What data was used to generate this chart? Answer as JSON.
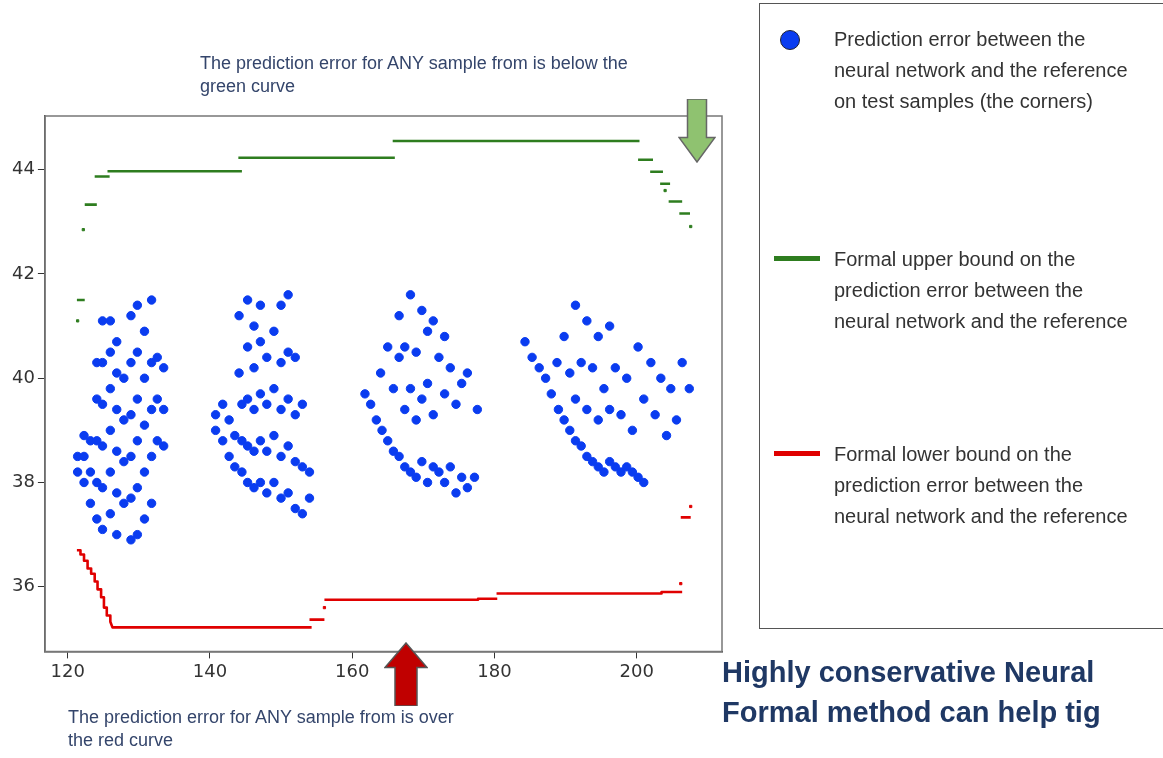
{
  "chart_data": {
    "type": "scatter",
    "annotations": [
      "The prediction error for ANY sample from is below the green curve",
      "The prediction error for ANY sample from  is over the red curve",
      "Highly conservative Neural",
      "Formal method can help tig"
    ],
    "xlim": [
      116.8,
      212.0
    ],
    "xticks": [
      120,
      140,
      160,
      180,
      200
    ],
    "ylim": [
      34.76,
      45.03
    ],
    "yticks": [
      36,
      38,
      40,
      42,
      44
    ],
    "grid": false,
    "legend": "right",
    "series": [
      {
        "name": "Prediction error between the neural network and the reference on test samples (the corners)",
        "type": "scatter",
        "marker": "circle",
        "color": "#0a3cf0",
        "x": [
          121.4,
          121.4,
          122.3,
          122.3,
          122.3,
          123.2,
          123.2,
          123.2,
          124.1,
          124.1,
          124.1,
          124.1,
          124.1,
          124.9,
          124.9,
          124.9,
          124.9,
          124.9,
          124.9,
          126.0,
          126.0,
          126.0,
          126.0,
          126.0,
          126.0,
          126.9,
          126.9,
          126.9,
          126.9,
          126.9,
          126.9,
          127.9,
          127.9,
          127.9,
          127.9,
          128.9,
          128.9,
          128.9,
          128.9,
          128.9,
          128.9,
          129.8,
          129.8,
          129.8,
          129.8,
          129.8,
          129.8,
          130.8,
          130.8,
          130.8,
          130.8,
          130.8,
          131.8,
          131.8,
          131.8,
          131.8,
          131.8,
          132.6,
          132.6,
          132.6,
          133.5,
          133.5,
          133.5,
          140.8,
          140.8,
          141.8,
          141.8,
          142.7,
          142.7,
          143.5,
          143.5,
          144.1,
          144.1,
          144.5,
          144.5,
          144.5,
          145.3,
          145.3,
          145.3,
          145.3,
          145.3,
          146.2,
          146.2,
          146.2,
          146.2,
          146.2,
          147.1,
          147.1,
          147.1,
          147.1,
          147.1,
          148.0,
          148.0,
          148.0,
          148.0,
          149.0,
          149.0,
          149.0,
          149.0,
          150.0,
          150.0,
          150.0,
          150.0,
          150.0,
          151.0,
          151.0,
          151.0,
          151.0,
          151.0,
          152.0,
          152.0,
          152.0,
          152.0,
          153.0,
          153.0,
          153.0,
          154.0,
          154.0,
          161.8,
          162.6,
          163.4,
          164.2,
          164.0,
          165.0,
          165.0,
          165.8,
          165.8,
          166.6,
          166.6,
          166.6,
          167.4,
          167.4,
          167.4,
          168.2,
          168.2,
          168.2,
          169.0,
          169.0,
          169.0,
          169.8,
          169.8,
          169.8,
          170.6,
          170.6,
          170.6,
          171.4,
          171.4,
          171.4,
          172.2,
          172.2,
          173.0,
          173.0,
          173.0,
          173.8,
          173.8,
          174.6,
          174.6,
          175.4,
          175.4,
          176.2,
          176.2,
          177.2,
          177.6,
          184.3,
          185.3,
          186.3,
          187.2,
          188.0,
          188.8,
          189.0,
          189.8,
          189.8,
          190.6,
          190.6,
          191.4,
          191.4,
          191.4,
          192.2,
          192.2,
          193.0,
          193.0,
          193.0,
          193.8,
          193.8,
          194.6,
          194.6,
          194.6,
          195.4,
          195.4,
          196.2,
          196.2,
          196.2,
          197.0,
          197.0,
          197.8,
          197.8,
          198.6,
          198.6,
          199.4,
          199.4,
          200.2,
          200.2,
          201.0,
          201.0,
          202.0,
          202.6,
          203.4,
          204.2,
          204.8,
          205.6,
          206.4,
          207.4
        ],
        "values": [
          38.2,
          38.5,
          38.0,
          38.5,
          38.9,
          37.6,
          38.2,
          38.8,
          37.3,
          38.0,
          38.8,
          39.6,
          40.3,
          37.1,
          37.9,
          38.7,
          39.5,
          40.3,
          41.1,
          37.4,
          38.2,
          39.0,
          39.8,
          40.5,
          41.1,
          37.0,
          37.8,
          38.6,
          39.4,
          40.1,
          40.7,
          37.6,
          38.4,
          39.2,
          40.0,
          36.9,
          37.7,
          38.5,
          39.3,
          40.3,
          41.2,
          37.0,
          37.9,
          38.8,
          39.6,
          40.5,
          41.4,
          37.3,
          38.2,
          39.1,
          40.0,
          40.9,
          37.6,
          38.5,
          39.4,
          40.3,
          41.5,
          38.8,
          39.6,
          40.4,
          38.7,
          39.4,
          40.2,
          39.0,
          39.3,
          38.8,
          39.5,
          38.5,
          39.2,
          38.3,
          38.9,
          40.1,
          41.2,
          38.2,
          38.8,
          39.5,
          38.0,
          38.7,
          39.6,
          40.6,
          41.5,
          37.9,
          38.6,
          39.4,
          40.2,
          41.0,
          38.0,
          38.8,
          39.7,
          40.7,
          41.4,
          37.8,
          38.6,
          39.5,
          40.4,
          38.0,
          38.9,
          39.8,
          40.9,
          37.7,
          38.5,
          39.4,
          40.3,
          41.4,
          37.8,
          38.7,
          39.6,
          40.5,
          41.6,
          37.5,
          38.4,
          39.3,
          40.4,
          37.4,
          38.3,
          39.5,
          37.7,
          38.2,
          39.7,
          39.5,
          39.2,
          39.0,
          40.1,
          38.8,
          40.6,
          38.6,
          39.8,
          38.5,
          40.4,
          41.2,
          38.3,
          39.4,
          40.6,
          38.2,
          39.8,
          41.6,
          38.1,
          39.2,
          40.5,
          38.4,
          39.6,
          41.3,
          38.0,
          39.9,
          40.9,
          38.3,
          39.3,
          41.1,
          38.2,
          40.4,
          38.0,
          39.7,
          40.8,
          38.3,
          40.2,
          37.8,
          39.5,
          38.1,
          39.9,
          37.9,
          40.1,
          38.1,
          39.4,
          40.7,
          40.4,
          40.2,
          40.0,
          39.7,
          40.3,
          39.4,
          39.2,
          40.8,
          39.0,
          40.1,
          38.8,
          39.6,
          41.4,
          38.7,
          40.3,
          38.5,
          39.4,
          41.1,
          38.4,
          40.2,
          38.3,
          39.2,
          40.8,
          38.2,
          39.8,
          38.4,
          39.4,
          41.0,
          38.3,
          40.2,
          38.2,
          39.3,
          38.3,
          40.0,
          38.2,
          39.0,
          38.1,
          40.6,
          38.0,
          39.6,
          40.3,
          39.3,
          40.0,
          38.9,
          39.8,
          39.2,
          40.3,
          39.8
        ]
      },
      {
        "name": "Formal upper bound on the prediction error between the neural network and the reference",
        "type": "line",
        "marker": "none",
        "line_style": "solid",
        "color": "#2e7d1f",
        "x": [
          121.3,
          122.4,
          null,
          122.4,
          124.1,
          null,
          123.8,
          125.9,
          null,
          125.6,
          144.5,
          null,
          144.0,
          166.0,
          null,
          165.7,
          200.4,
          null,
          200.2,
          202.3,
          null,
          201.9,
          203.7,
          null,
          203.3,
          204.7,
          null,
          204.5,
          206.4,
          null,
          206.0,
          207.5
        ],
        "values": [
          41.5,
          41.5,
          null,
          43.33,
          43.33,
          null,
          43.87,
          43.87,
          null,
          43.97,
          43.97,
          null,
          44.23,
          44.23,
          null,
          44.55,
          44.55,
          null,
          44.19,
          44.19,
          null,
          43.96,
          43.96,
          null,
          43.73,
          43.73,
          null,
          43.39,
          43.39,
          null,
          43.16,
          43.16
        ]
      },
      {
        "type": "scatter",
        "marker": "square",
        "color": "#2e7d1f",
        "x": [
          121.4,
          122.2,
          204.0,
          207.6
        ],
        "values": [
          41.1,
          42.85,
          43.6,
          42.91
        ]
      },
      {
        "name": "Formal lower bound on the prediction error between the neural network and the reference",
        "type": "line",
        "marker": "none",
        "line_style": "solid",
        "color": "#e00000",
        "x": [
          121.3,
          121.8,
          121.8,
          122.3,
          122.3,
          122.8,
          122.8,
          123.3,
          123.3,
          123.8,
          123.8,
          124.2,
          124.2,
          124.7,
          124.7,
          125.1,
          125.1,
          125.5,
          125.5,
          126.0,
          126.0,
          126.3,
          154.3,
          null,
          154.0,
          156.1,
          null,
          156.1,
          177.7,
          177.7,
          180.4,
          null,
          180.3,
          203.5,
          203.5,
          206.4,
          null,
          206.2,
          207.6
        ],
        "values": [
          36.7,
          36.7,
          36.62,
          36.62,
          36.5,
          36.5,
          36.35,
          36.35,
          36.25,
          36.25,
          36.1,
          36.1,
          35.95,
          35.95,
          35.8,
          35.8,
          35.6,
          35.6,
          35.45,
          35.45,
          35.33,
          35.22,
          35.22,
          null,
          35.37,
          35.37,
          null,
          35.75,
          35.75,
          35.77,
          35.77,
          null,
          35.87,
          35.87,
          35.9,
          35.9,
          null,
          37.33,
          37.33
        ]
      },
      {
        "type": "scatter",
        "marker": "square",
        "color": "#e00000",
        "x": [
          156.1,
          206.2,
          207.6
        ],
        "values": [
          35.6,
          36.06,
          37.54
        ]
      }
    ]
  }
}
